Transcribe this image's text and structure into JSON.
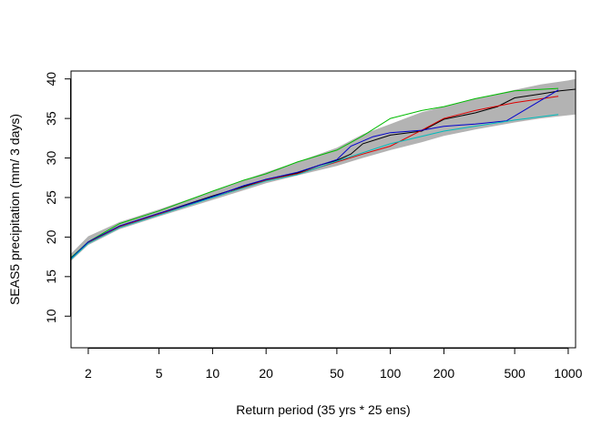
{
  "chart_data": {
    "type": "line",
    "title": "",
    "xlabel": "Return period (35 yrs * 25 ens)",
    "ylabel": "SEAS5 precipitation (mm/ 3 days)",
    "x_scale": "log",
    "xlim": [
      1.6,
      1100
    ],
    "ylim": [
      6,
      41
    ],
    "x_ticks": [
      2,
      5,
      10,
      20,
      50,
      100,
      200,
      500,
      1000
    ],
    "y_ticks": [
      10,
      15,
      20,
      25,
      30,
      35,
      40
    ],
    "grid": false,
    "legend": "none",
    "band": {
      "color": "#b3b3b3",
      "x": [
        1.6,
        2,
        3,
        5,
        10,
        20,
        30,
        50,
        70,
        100,
        150,
        200,
        300,
        500,
        700,
        1000,
        1100
      ],
      "lower": [
        17.0,
        19.0,
        21.0,
        22.6,
        24.7,
        26.8,
        27.8,
        29.0,
        30.0,
        31.0,
        32.0,
        32.8,
        33.6,
        34.5,
        35.0,
        35.4,
        35.5
      ],
      "upper": [
        17.9,
        20.1,
        21.9,
        23.5,
        25.8,
        28.2,
        29.5,
        31.3,
        33.0,
        34.3,
        35.8,
        36.5,
        37.5,
        38.6,
        39.3,
        39.8,
        40.0
      ]
    },
    "series": [
      {
        "color": "#000000",
        "x": [
          1.6,
          2,
          3,
          5,
          10,
          15,
          20,
          30,
          40,
          50,
          60,
          70,
          100,
          150,
          200,
          300,
          400,
          500,
          700,
          900,
          1100
        ],
        "y": [
          17.4,
          19.3,
          21.4,
          23.0,
          25.2,
          26.4,
          27.3,
          28.1,
          29.1,
          29.7,
          30.5,
          31.8,
          32.9,
          33.4,
          34.9,
          35.7,
          36.5,
          37.6,
          38.1,
          38.5,
          38.7
        ]
      },
      {
        "color": "#dd0000",
        "x": [
          1.6,
          2,
          3,
          5,
          10,
          20,
          30,
          50,
          70,
          100,
          150,
          200,
          300,
          500,
          880
        ],
        "y": [
          17.3,
          19.3,
          21.3,
          22.9,
          25.0,
          27.2,
          28.0,
          29.5,
          30.5,
          31.5,
          33.5,
          35.0,
          36.0,
          37.0,
          37.8
        ]
      },
      {
        "color": "#00bb00",
        "x": [
          1.6,
          2,
          3,
          5,
          10,
          15,
          20,
          30,
          50,
          70,
          100,
          150,
          200,
          300,
          500,
          880
        ],
        "y": [
          17.4,
          19.4,
          21.7,
          23.3,
          25.8,
          27.2,
          28.0,
          29.5,
          31.0,
          32.8,
          35.0,
          36.0,
          36.5,
          37.5,
          38.5,
          38.8
        ]
      },
      {
        "color": "#0000cc",
        "x": [
          1.6,
          2,
          3,
          5,
          10,
          15,
          20,
          30,
          50,
          60,
          80,
          100,
          150,
          200,
          300,
          450,
          880
        ],
        "y": [
          17.3,
          19.4,
          21.4,
          23.0,
          25.1,
          26.5,
          27.3,
          28.2,
          29.8,
          31.5,
          32.7,
          33.2,
          33.5,
          34.0,
          34.3,
          34.7,
          38.6
        ]
      },
      {
        "color": "#00bbbb",
        "x": [
          1.6,
          2,
          3,
          5,
          10,
          20,
          30,
          50,
          100,
          200,
          500,
          880
        ],
        "y": [
          17.2,
          19.2,
          21.2,
          22.8,
          25.0,
          27.1,
          27.9,
          29.6,
          31.8,
          33.4,
          34.8,
          35.5
        ]
      }
    ]
  }
}
